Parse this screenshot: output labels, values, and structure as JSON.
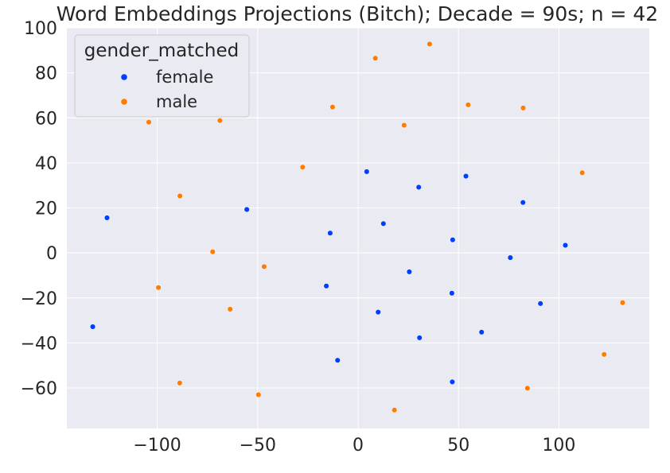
{
  "chart_data": {
    "type": "scatter",
    "title": "Word Embeddings Projections (Bitch); Decade = 90s; n = 42",
    "xlabel": "",
    "ylabel": "",
    "xlim": [
      -145,
      145
    ],
    "ylim": [
      -78,
      100
    ],
    "xticks": [
      -100,
      -50,
      0,
      50,
      100
    ],
    "yticks": [
      -60,
      -40,
      -20,
      0,
      20,
      40,
      60,
      80,
      100
    ],
    "xtick_labels": [
      "−100",
      "−50",
      "0",
      "50",
      "100"
    ],
    "ytick_labels": [
      "−60",
      "−40",
      "−20",
      "0",
      "20",
      "40",
      "60",
      "80",
      "100"
    ],
    "grid": true,
    "legend": {
      "title": "gender_matched",
      "placement": "top-left",
      "entries": [
        "female",
        "male"
      ]
    },
    "colors": {
      "female": "#023eff",
      "male": "#ff7c00"
    },
    "series": [
      {
        "name": "female",
        "points": [
          [
            -125,
            15.6
          ],
          [
            -55.4,
            19.3
          ],
          [
            -13.9,
            8.8
          ],
          [
            4.3,
            36.1
          ],
          [
            12.6,
            13
          ],
          [
            30.2,
            29.2
          ],
          [
            53.7,
            34.1
          ],
          [
            47.1,
            5.8
          ],
          [
            82.1,
            22.4
          ],
          [
            103.2,
            3.4
          ],
          [
            75.8,
            -2.1
          ],
          [
            25.5,
            -8.4
          ],
          [
            -15.8,
            -14.7
          ],
          [
            46.7,
            -17.9
          ],
          [
            90.8,
            -22.5
          ],
          [
            10,
            -26.3
          ],
          [
            61.5,
            -35.2
          ],
          [
            30.6,
            -37.7
          ],
          [
            -10.2,
            -47.7
          ],
          [
            46.9,
            -57.3
          ],
          [
            -132.1,
            -32.8
          ]
        ]
      },
      {
        "name": "male",
        "points": [
          [
            8.6,
            86.5
          ],
          [
            35.6,
            92.8
          ],
          [
            -104.2,
            58.1
          ],
          [
            -68.8,
            58.8
          ],
          [
            -12.7,
            64.8
          ],
          [
            22.9,
            56.7
          ],
          [
            54.8,
            65.8
          ],
          [
            82.2,
            64.4
          ],
          [
            -27.6,
            38.1
          ],
          [
            111.6,
            35.6
          ],
          [
            -88.7,
            25.3
          ],
          [
            -72.4,
            0.5
          ],
          [
            -46.8,
            -6.1
          ],
          [
            -99.4,
            -15.4
          ],
          [
            -63.7,
            -25
          ],
          [
            131.7,
            -22.1
          ],
          [
            122.5,
            -45.1
          ],
          [
            -88.8,
            -57.8
          ],
          [
            -49.6,
            -63
          ],
          [
            84.3,
            -60.1
          ],
          [
            18.1,
            -69.8
          ]
        ]
      }
    ]
  }
}
